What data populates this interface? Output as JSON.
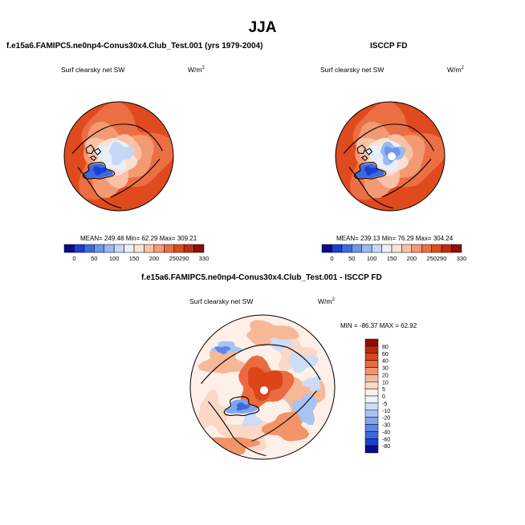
{
  "season": "JJA",
  "panels": [
    {
      "title": "f.e15a6.FAMIPC5.ne0np4-Conus30x4.Club_Test.001 (yrs 1979-2004)",
      "variable": "Surf clearsky net SW",
      "units_base": "W/m",
      "units_exp": "2",
      "stats": "MEAN= 249.48  Min=  62.29  Max= 309.21"
    },
    {
      "title": "ISCCP FD",
      "variable": "Surf clearsky net SW",
      "units_base": "W/m",
      "units_exp": "2",
      "stats": "MEAN= 239.13  Min=  76.29  Max= 304.24"
    },
    {
      "title": "f.e15a6.FAMIPC5.ne0np4-Conus30x4.Club_Test.001 - ISCCP FD",
      "variable": "Surf clearsky net SW",
      "units_base": "W/m",
      "units_exp": "2",
      "stats": "MIN = -86.37 MAX =  62.92"
    }
  ],
  "colors": {
    "abs_scale": [
      "#0c0a8c",
      "#1a3fd1",
      "#3a6ae0",
      "#6e96ea",
      "#9ab8f1",
      "#c6d7f6",
      "#eaf0fb",
      "#fbe1d4",
      "#f8c2a7",
      "#f39a72",
      "#ec6f44",
      "#e04a1f",
      "#c42a0e",
      "#8e0f07"
    ],
    "diff_scale": [
      "#0c0a8c",
      "#1a3fd1",
      "#3a6ae0",
      "#5c86e6",
      "#82a6ee",
      "#a8c3f3",
      "#cddcf7",
      "#eef3fc",
      "#fdf0e9",
      "#fbd8c6",
      "#f7b898",
      "#f2946a",
      "#eb6b40",
      "#dc4419",
      "#b82b0f",
      "#8e0f07"
    ]
  },
  "chart_data": [
    {
      "type": "heatmap",
      "title": "f.e15a6.FAMIPC5.ne0np4-Conus30x4.Club_Test.001 (yrs 1979-2004)",
      "variable": "Surf clearsky net SW",
      "units": "W/m2",
      "projection": "north polar stereographic",
      "colorbar_levels": [
        0,
        50,
        100,
        150,
        200,
        250,
        290,
        330
      ],
      "colorbar_orientation": "horizontal",
      "mean": 249.48,
      "min": 62.29,
      "max": 309.21
    },
    {
      "type": "heatmap",
      "title": "ISCCP FD",
      "variable": "Surf clearsky net SW",
      "units": "W/m2",
      "projection": "north polar stereographic",
      "colorbar_levels": [
        0,
        50,
        100,
        150,
        200,
        250,
        290,
        330
      ],
      "colorbar_orientation": "horizontal",
      "mean": 239.13,
      "min": 76.29,
      "max": 304.24
    },
    {
      "type": "heatmap",
      "title": "f.e15a6.FAMIPC5.ne0np4-Conus30x4.Club_Test.001 - ISCCP FD",
      "variable": "Surf clearsky net SW",
      "units": "W/m2",
      "projection": "north polar stereographic",
      "colorbar_levels": [
        80,
        60,
        40,
        30,
        20,
        10,
        5,
        0,
        -5,
        -10,
        -20,
        -30,
        -40,
        -60,
        -80
      ],
      "colorbar_orientation": "vertical",
      "min": -86.37,
      "max": 62.92
    }
  ]
}
